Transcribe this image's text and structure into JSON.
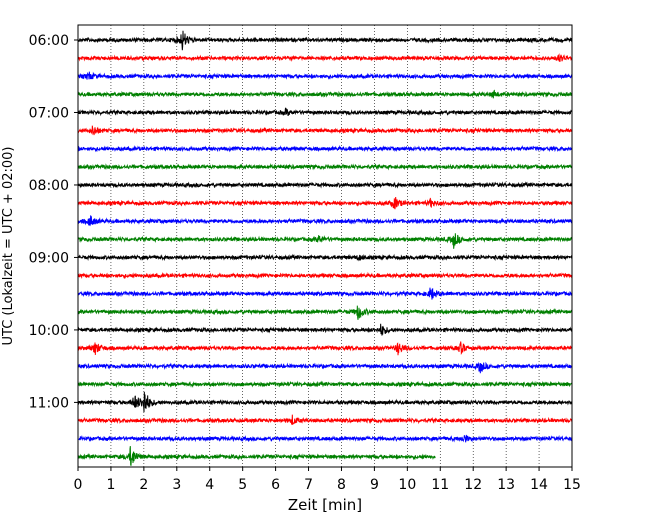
{
  "chart_data": {
    "type": "line",
    "xlabel": "Zeit  [min]",
    "ylabel": "UTC (Lokalzeit = UTC + 02:00)",
    "xlim": [
      0,
      15
    ],
    "x_ticks": [
      "0",
      "1",
      "2",
      "3",
      "4",
      "5",
      "6",
      "7",
      "8",
      "9",
      "10",
      "11",
      "12",
      "13",
      "14",
      "15"
    ],
    "y_tick_labels": [
      "06:00",
      "07:00",
      "08:00",
      "09:00",
      "10:00",
      "11:00"
    ],
    "trace_interval_min": 15,
    "first_trace": "06:00",
    "trace_colors": [
      "#000000",
      "#ff0000",
      "#0000ff",
      "#008000"
    ],
    "grid_x": true,
    "traces": [
      {
        "start": "06:00",
        "end_min": 15,
        "events": [
          {
            "t": 3.15,
            "amp": 1.0
          }
        ]
      },
      {
        "start": "06:15",
        "end_min": 15,
        "events": [
          {
            "t": 14.6,
            "amp": 0.3
          }
        ]
      },
      {
        "start": "06:30",
        "end_min": 15,
        "events": [
          {
            "t": 0.3,
            "amp": 0.35
          }
        ]
      },
      {
        "start": "06:45",
        "end_min": 15,
        "events": [
          {
            "t": 12.6,
            "amp": 0.3
          }
        ]
      },
      {
        "start": "07:00",
        "end_min": 15,
        "events": [
          {
            "t": 6.3,
            "amp": 0.25
          }
        ]
      },
      {
        "start": "07:15",
        "end_min": 15,
        "events": [
          {
            "t": 0.45,
            "amp": 0.45
          }
        ]
      },
      {
        "start": "07:30",
        "end_min": 15,
        "events": []
      },
      {
        "start": "07:45",
        "end_min": 15,
        "events": []
      },
      {
        "start": "08:00",
        "end_min": 15,
        "events": []
      },
      {
        "start": "08:15",
        "end_min": 15,
        "events": [
          {
            "t": 9.6,
            "amp": 0.55
          },
          {
            "t": 10.7,
            "amp": 0.3
          }
        ]
      },
      {
        "start": "08:30",
        "end_min": 15,
        "events": [
          {
            "t": 0.35,
            "amp": 0.5
          }
        ]
      },
      {
        "start": "08:45",
        "end_min": 15,
        "events": [
          {
            "t": 11.4,
            "amp": 0.7
          },
          {
            "t": 7.3,
            "amp": 0.3
          }
        ]
      },
      {
        "start": "09:00",
        "end_min": 15,
        "events": [
          {
            "t": 8.5,
            "amp": 0.2
          }
        ]
      },
      {
        "start": "09:15",
        "end_min": 15,
        "events": []
      },
      {
        "start": "09:30",
        "end_min": 15,
        "events": [
          {
            "t": 10.7,
            "amp": 0.6
          }
        ]
      },
      {
        "start": "09:45",
        "end_min": 15,
        "events": [
          {
            "t": 8.5,
            "amp": 0.7
          }
        ]
      },
      {
        "start": "10:00",
        "end_min": 15,
        "events": [
          {
            "t": 9.2,
            "amp": 0.5
          }
        ]
      },
      {
        "start": "10:15",
        "end_min": 15,
        "events": [
          {
            "t": 0.5,
            "amp": 0.6
          },
          {
            "t": 9.7,
            "amp": 0.55
          },
          {
            "t": 11.6,
            "amp": 0.5
          }
        ]
      },
      {
        "start": "10:30",
        "end_min": 15,
        "events": [
          {
            "t": 12.2,
            "amp": 0.55
          }
        ]
      },
      {
        "start": "10:45",
        "end_min": 15,
        "events": []
      },
      {
        "start": "11:00",
        "end_min": 15,
        "events": [
          {
            "t": 2.0,
            "amp": 1.2
          },
          {
            "t": 1.7,
            "amp": 0.6
          }
        ]
      },
      {
        "start": "11:15",
        "end_min": 15,
        "events": [
          {
            "t": 6.5,
            "amp": 0.4
          }
        ]
      },
      {
        "start": "11:30",
        "end_min": 15,
        "events": [
          {
            "t": 11.7,
            "amp": 0.35
          }
        ]
      },
      {
        "start": "11:45",
        "end_min": 10.85,
        "events": [
          {
            "t": 1.6,
            "amp": 1.0
          }
        ]
      }
    ]
  }
}
